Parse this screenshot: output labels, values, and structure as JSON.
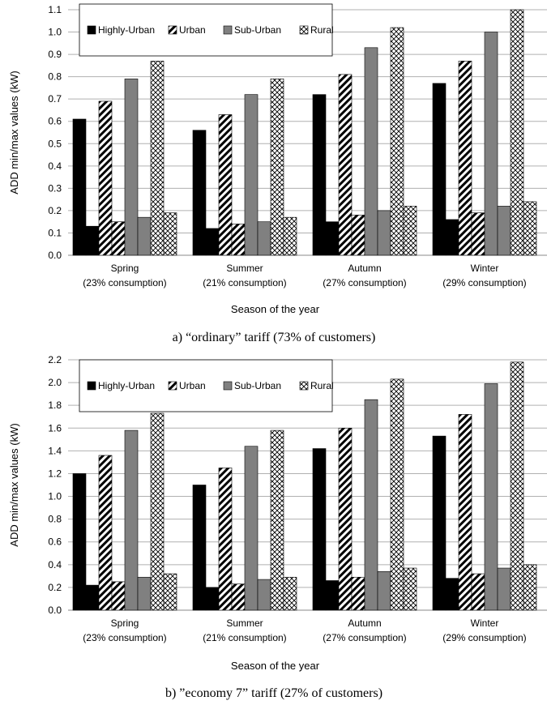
{
  "chart_data": [
    {
      "type": "bar",
      "caption": "a) “ordinary” tariff (73% of customers)",
      "xlabel": "Season of the year",
      "ylabel": "ADD min/max values (kW)",
      "ylim": [
        0,
        1.1
      ],
      "yticks": [
        "0.0",
        "0.1",
        "0.2",
        "0.3",
        "0.4",
        "0.5",
        "0.6",
        "0.7",
        "0.8",
        "0.9",
        "1.0",
        "1.1"
      ],
      "categories": [
        {
          "name": "Spring",
          "sub": "(23% consumption)"
        },
        {
          "name": "Summer",
          "sub": "(21% consumption)"
        },
        {
          "name": "Autumn",
          "sub": "(27% consumption)"
        },
        {
          "name": "Winter",
          "sub": "(29% consumption)"
        }
      ],
      "grid": true,
      "legend_position": "top-left",
      "series": [
        {
          "name": "Highly-Urban",
          "pattern": "solid-black",
          "max": [
            0.61,
            0.56,
            0.72,
            0.77
          ],
          "min": [
            0.13,
            0.12,
            0.15,
            0.16
          ]
        },
        {
          "name": "Urban",
          "pattern": "diagonal-hatch",
          "max": [
            0.69,
            0.63,
            0.81,
            0.87
          ],
          "min": [
            0.15,
            0.14,
            0.18,
            0.19
          ]
        },
        {
          "name": "Sub-Urban",
          "pattern": "solid-grey",
          "max": [
            0.79,
            0.72,
            0.93,
            1.0
          ],
          "min": [
            0.17,
            0.15,
            0.2,
            0.22
          ]
        },
        {
          "name": "Rural",
          "pattern": "cross-hatch",
          "max": [
            0.87,
            0.79,
            1.02,
            1.1
          ],
          "min": [
            0.19,
            0.17,
            0.22,
            0.24
          ]
        }
      ]
    },
    {
      "type": "bar",
      "caption": "b) ”economy 7” tariff (27% of customers)",
      "xlabel": "Season of the year",
      "ylabel": "ADD min/max values (kW)",
      "ylim": [
        0,
        2.2
      ],
      "yticks": [
        "0.0",
        "0.2",
        "0.4",
        "0.6",
        "0.8",
        "1.0",
        "1.2",
        "1.4",
        "1.6",
        "1.8",
        "2.0",
        "2.2"
      ],
      "categories": [
        {
          "name": "Spring",
          "sub": "(23% consumption)"
        },
        {
          "name": "Summer",
          "sub": "(21% consumption)"
        },
        {
          "name": "Autumn",
          "sub": "(27% consumption)"
        },
        {
          "name": "Winter",
          "sub": "(29% consumption)"
        }
      ],
      "grid": true,
      "legend_position": "top-left",
      "series": [
        {
          "name": "Highly-Urban",
          "pattern": "solid-black",
          "max": [
            1.2,
            1.1,
            1.42,
            1.53
          ],
          "min": [
            0.22,
            0.2,
            0.26,
            0.28
          ]
        },
        {
          "name": "Urban",
          "pattern": "diagonal-hatch",
          "max": [
            1.36,
            1.25,
            1.6,
            1.72
          ],
          "min": [
            0.25,
            0.23,
            0.29,
            0.32
          ]
        },
        {
          "name": "Sub-Urban",
          "pattern": "solid-grey",
          "max": [
            1.58,
            1.44,
            1.85,
            1.99
          ],
          "min": [
            0.29,
            0.27,
            0.34,
            0.37
          ]
        },
        {
          "name": "Rural",
          "pattern": "cross-hatch",
          "max": [
            1.73,
            1.58,
            2.03,
            2.18
          ],
          "min": [
            0.32,
            0.29,
            0.37,
            0.4
          ]
        }
      ]
    }
  ],
  "colors": {
    "solid_black": "#000000",
    "solid_grey": "#808080",
    "grid": "#b0b0b0",
    "axis": "#888888",
    "outline": "#000000"
  }
}
